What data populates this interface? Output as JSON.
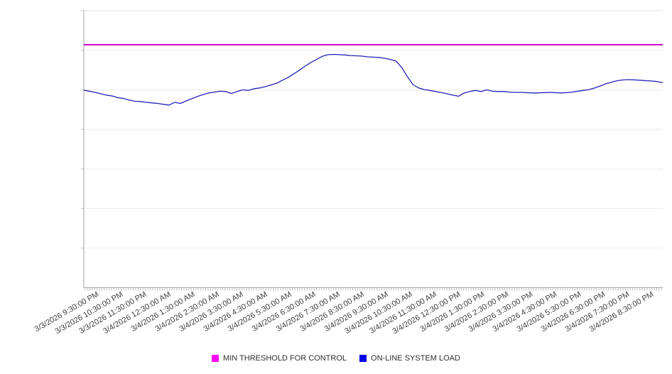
{
  "chart_data": {
    "type": "line",
    "title": "",
    "grid": true,
    "legend_position": "bottom-center",
    "x_axis": {
      "tick_labels": [
        "3/3/2026 9:30:00 PM",
        "3/3/2026 10:30:00 PM",
        "3/3/2026 11:30:00 PM",
        "3/4/2026 12:30:00 AM",
        "3/4/2026 1:30:00 AM",
        "3/4/2026 2:30:00 AM",
        "3/4/2026 3:30:00 AM",
        "3/4/2026 4:30:00 AM",
        "3/4/2026 5:30:00 AM",
        "3/4/2026 6:30:00 AM",
        "3/4/2026 7:30:00 AM",
        "3/4/2026 8:30:00 AM",
        "3/4/2026 9:30:00 AM",
        "3/4/2026 10:30:00 AM",
        "3/4/2026 11:30:00 AM",
        "3/4/2026 12:30:00 PM",
        "3/4/2026 1:30:00 PM",
        "3/4/2026 2:30:00 PM",
        "3/4/2026 3:30:00 PM",
        "3/4/2026 4:30:00 PM",
        "3/4/2026 5:30:00 PM",
        "3/4/2026 6:30:00 PM",
        "3/4/2026 7:30:00 PM",
        "3/4/2026 8:30:00 PM"
      ],
      "minor_tick_count": 240
    },
    "y_axis": {
      "min": 0,
      "max": 100,
      "tick_labels_visible": false,
      "gridline_divisions": 7,
      "scale_note": "no numeric y-axis labels shown; values are percent of plot height"
    },
    "series": [
      {
        "name": "MIN THRESHOLD FOR CONTROL",
        "kind": "constant-threshold",
        "color": "#CC00CC",
        "legend_color": "#FF00FF",
        "value": 87.7
      },
      {
        "name": "ON-LINE SYSTEM LOAD",
        "kind": "line",
        "color": "#2222BB",
        "legend_color": "#0000E6",
        "values": [
          71.3,
          70.9,
          70.5,
          70.0,
          69.5,
          69.2,
          68.6,
          68.3,
          67.7,
          67.3,
          67.2,
          66.9,
          66.7,
          66.5,
          66.2,
          65.9,
          66.9,
          66.5,
          67.4,
          68.2,
          69.0,
          69.7,
          70.3,
          70.6,
          70.9,
          70.8,
          70.1,
          70.8,
          71.4,
          71.2,
          71.8,
          72.1,
          72.6,
          73.2,
          73.8,
          74.9,
          75.9,
          77.2,
          78.5,
          80.0,
          81.3,
          82.4,
          83.5,
          84.1,
          84.2,
          84.1,
          84.0,
          83.8,
          83.7,
          83.6,
          83.3,
          83.2,
          83.1,
          82.8,
          82.4,
          81.8,
          79.5,
          76.2,
          73.3,
          72.1,
          71.5,
          71.2,
          70.8,
          70.4,
          70.0,
          69.5,
          69.1,
          70.3,
          70.8,
          71.2,
          70.8,
          71.4,
          70.9,
          70.8,
          70.8,
          70.6,
          70.5,
          70.5,
          70.4,
          70.3,
          70.3,
          70.4,
          70.5,
          70.4,
          70.3,
          70.4,
          70.6,
          70.9,
          71.2,
          71.5,
          72.1,
          72.8,
          73.6,
          74.2,
          74.7,
          75.0,
          75.1,
          75.0,
          74.9,
          74.7,
          74.6,
          74.4,
          74.0
        ]
      }
    ],
    "colors": {
      "gridline": "#ececec",
      "plot_top_border": "#e0e0e0",
      "axis": "#a6a6a6",
      "minor_tick": "#bdbdbd",
      "label_text": "#3f3f3f"
    }
  }
}
